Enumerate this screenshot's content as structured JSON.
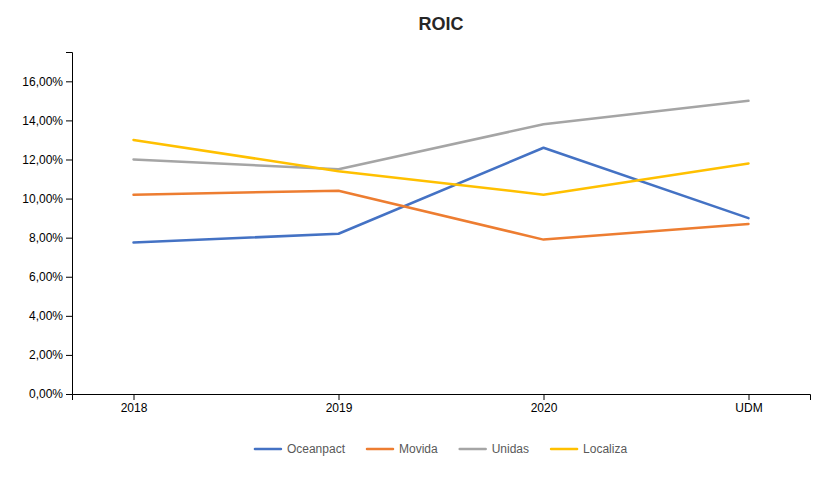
{
  "chart_data": {
    "type": "line",
    "title": "ROIC",
    "categories": [
      "2018",
      "2019",
      "2020",
      "UDM"
    ],
    "series": [
      {
        "name": "Oceanpact",
        "color": "#4472C4",
        "values": [
          0.0775,
          0.082,
          0.126,
          0.09
        ]
      },
      {
        "name": "Movida",
        "color": "#ED7D31",
        "values": [
          0.102,
          0.104,
          0.079,
          0.087
        ]
      },
      {
        "name": "Unidas",
        "color": "#A5A5A5",
        "values": [
          0.12,
          0.115,
          0.138,
          0.15
        ]
      },
      {
        "name": "Localiza",
        "color": "#FFC000",
        "values": [
          0.13,
          0.114,
          0.102,
          0.118
        ]
      }
    ],
    "ylim": [
      0.0,
      0.175
    ],
    "yticks": [
      {
        "value": 0.0,
        "label": "0,00%"
      },
      {
        "value": 0.02,
        "label": "2,00%"
      },
      {
        "value": 0.04,
        "label": "4,00%"
      },
      {
        "value": 0.06,
        "label": "6,00%"
      },
      {
        "value": 0.08,
        "label": "8,00%"
      },
      {
        "value": 0.1,
        "label": "10,00%"
      },
      {
        "value": 0.12,
        "label": "12,00%"
      },
      {
        "value": 0.14,
        "label": "14,00%"
      },
      {
        "value": 0.16,
        "label": "16,00%"
      }
    ],
    "grid": false,
    "legend": "bottom"
  }
}
